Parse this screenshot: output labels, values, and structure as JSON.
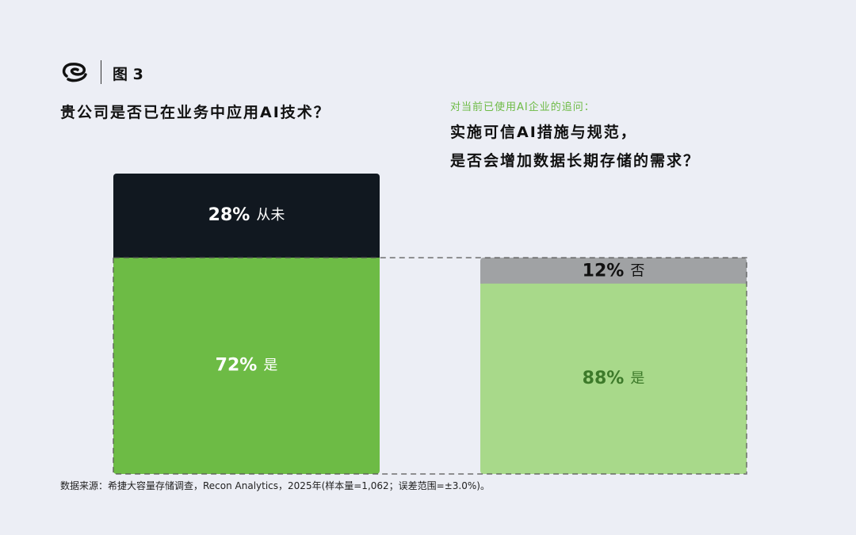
{
  "header": {
    "figure_label": "图 3",
    "question_left": "贵公司是否已在业务中应用AI技术？",
    "followup_label": "对当前已使用AI企业的追问：",
    "question_right_line1": "实施可信AI措施与规范，",
    "question_right_line2": "是否会增加数据长期存储的需求？"
  },
  "colors": {
    "dark": "#111820",
    "green": "#6dbb45",
    "light_green": "#a8d98a",
    "gray": "#a0a2a4",
    "dark_green_text": "#3d7a2a",
    "background": "#eceef5"
  },
  "chart_data": [
    {
      "type": "bar",
      "stacked": true,
      "title": "贵公司是否已在业务中应用AI技术？",
      "series": [
        {
          "name": "是",
          "value": 72,
          "label": "72%"
        },
        {
          "name": "从未",
          "value": 28,
          "label": "28%"
        }
      ]
    },
    {
      "type": "bar",
      "stacked": true,
      "title": "实施可信AI措施与规范，是否会增加数据长期存储的需求？",
      "series": [
        {
          "name": "是",
          "value": 88,
          "label": "88%"
        },
        {
          "name": "否",
          "value": 12,
          "label": "12%"
        }
      ]
    }
  ],
  "footer": {
    "source": "数据来源：希捷大容量存储调查，Recon Analytics，2025年(样本量=1,062；误差范围=±3.0%)。"
  }
}
